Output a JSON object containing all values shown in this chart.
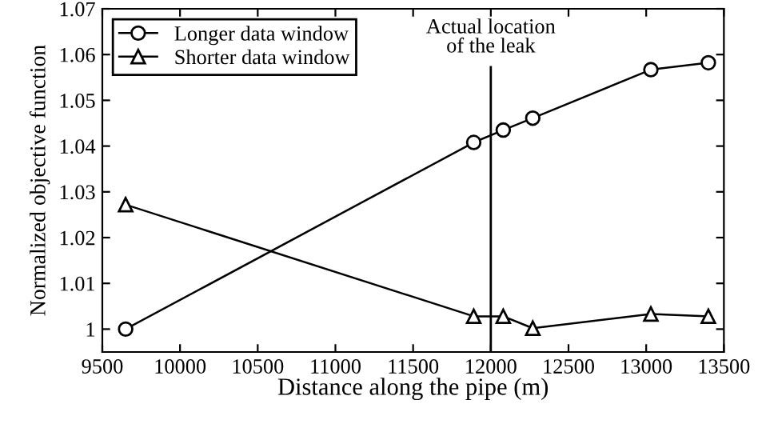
{
  "chart_data": {
    "type": "line",
    "xlabel": "Distance along the pipe (m)",
    "ylabel": "Normalized objective function",
    "series": [
      {
        "name": "Longer data window",
        "color": "#000000",
        "marker": "circle",
        "x": [
          9650,
          11890,
          12080,
          12270,
          13030,
          13400
        ],
        "values": [
          1.0,
          1.0408,
          1.0435,
          1.0461,
          1.0567,
          1.0582
        ]
      },
      {
        "name": "Shorter data window",
        "color": "#000000",
        "marker": "triangle",
        "x": [
          9650,
          11890,
          12080,
          12270,
          13030,
          13400
        ],
        "values": [
          1.0272,
          1.0028,
          1.0028,
          1.0002,
          1.0033,
          1.0028
        ]
      }
    ],
    "xlim": [
      9500,
      13500
    ],
    "xticks": [
      9500,
      10000,
      10500,
      11000,
      11500,
      12000,
      12500,
      13000,
      13500
    ],
    "ylim": [
      0.995,
      1.07
    ],
    "yticks": [
      1,
      1.01,
      1.02,
      1.03,
      1.04,
      1.05,
      1.06,
      1.07
    ],
    "ref_lines": [
      {
        "axis": "x",
        "value": 12000,
        "label": "Actual location\nof the leak",
        "color": "#000000",
        "line_style": "solid"
      }
    ],
    "legend": "top left",
    "grid": false,
    "line_style": "solid"
  }
}
